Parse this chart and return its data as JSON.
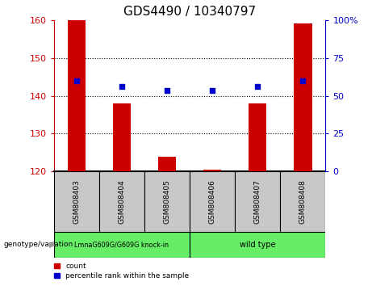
{
  "title": "GDS4490 / 10340797",
  "samples": [
    "GSM808403",
    "GSM808404",
    "GSM808405",
    "GSM808406",
    "GSM808407",
    "GSM808408"
  ],
  "count_values": [
    160,
    138,
    124,
    120.5,
    138,
    159
  ],
  "percentile_values": [
    144,
    142.5,
    141.5,
    141.5,
    142.5,
    144
  ],
  "ymin": 120,
  "ymax": 160,
  "yticks_left": [
    120,
    130,
    140,
    150,
    160
  ],
  "yticks_right": [
    0,
    25,
    50,
    75,
    100
  ],
  "yticks_right_pos": [
    120,
    130,
    140,
    150,
    160
  ],
  "bar_color": "#cc0000",
  "dot_color": "#0000cc",
  "label_bg": "#c8c8c8",
  "group1_label": "LmnaG609G/G609G knock-in",
  "group1_color": "#66ee66",
  "group2_label": "wild type",
  "group2_color": "#66ee66",
  "group1_indices": [
    0,
    1,
    2
  ],
  "group2_indices": [
    3,
    4,
    5
  ],
  "genotype_label": "genotype/variation",
  "legend_count": "count",
  "legend_percentile": "percentile rank within the sample",
  "title_fontsize": 11,
  "tick_fontsize": 8,
  "sample_fontsize": 6.5,
  "left_axis_color": "#cc0000",
  "right_axis_color": "#0000cc",
  "bar_width": 0.4
}
